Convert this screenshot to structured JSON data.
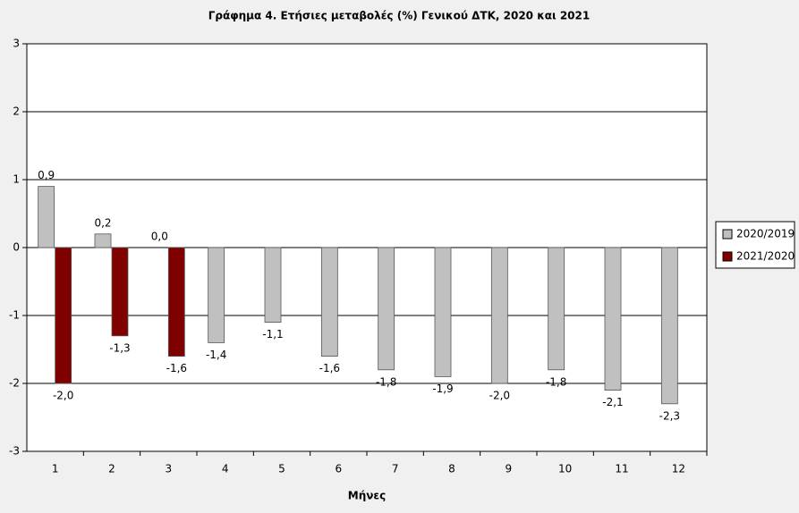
{
  "chart_data": {
    "type": "bar",
    "title": "Γράφημα 4. Ετήσιες μεταβολές (%) Γενικού ΔΤΚ, 2020 και 2021",
    "x_label": "Μήνες",
    "categories": [
      "1",
      "2",
      "3",
      "4",
      "5",
      "6",
      "7",
      "8",
      "9",
      "10",
      "11",
      "12"
    ],
    "series": [
      {
        "name": "2020/2019",
        "color": "#c0c0c0",
        "values": [
          0.9,
          0.2,
          0.0,
          -1.4,
          -1.1,
          -1.6,
          -1.8,
          -1.9,
          -2.0,
          -1.8,
          -2.1,
          -2.3
        ],
        "value_labels": [
          "0,9",
          "0,2",
          "0,0",
          "-1,4",
          "-1,1",
          "-1,6",
          "-1,8",
          "-1,9",
          "-2,0",
          "-1,8",
          "-2,1",
          "-2,3"
        ]
      },
      {
        "name": "2021/2020",
        "color": "#800000",
        "values": [
          -2.0,
          -1.3,
          -1.6,
          null,
          null,
          null,
          null,
          null,
          null,
          null,
          null,
          null
        ],
        "value_labels": [
          "-2,0",
          "-1,3",
          "-1,6",
          null,
          null,
          null,
          null,
          null,
          null,
          null,
          null,
          null
        ]
      }
    ],
    "ylim": [
      -3,
      3
    ],
    "yticks": [
      3,
      2,
      1,
      0,
      -1,
      -2,
      -3
    ],
    "grid": true,
    "legend": "right"
  }
}
